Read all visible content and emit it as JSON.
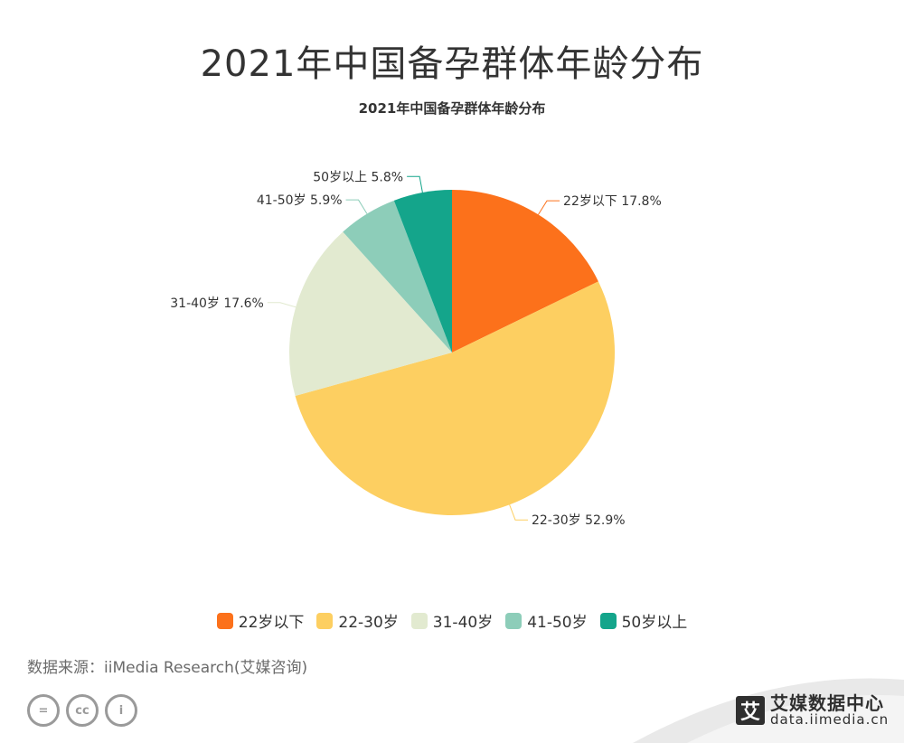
{
  "main_title": "2021年中国备孕群体年龄分布",
  "source": "数据来源：iiMedia Research(艾媒咨询)",
  "brand": {
    "name": "艾媒数据中心",
    "url": "data.iimedia.cn",
    "logo_char": "艾"
  },
  "license_icons": [
    "cc-equal-icon",
    "cc-icon",
    "cc-by-icon"
  ],
  "chart_data": {
    "type": "pie",
    "title": "2021年中国备孕群体年龄分布",
    "legend_position": "bottom",
    "slices": [
      {
        "label": "22岁以下",
        "value": 17.8,
        "display": "22岁以下 17.8%",
        "color": "#fc711b"
      },
      {
        "label": "22-30岁",
        "value": 52.9,
        "display": "22-30岁 52.9%",
        "color": "#fdcf61"
      },
      {
        "label": "31-40岁",
        "value": 17.6,
        "display": "31-40岁 17.6%",
        "color": "#e2ead0"
      },
      {
        "label": "41-50岁",
        "value": 5.9,
        "display": "41-50岁 5.9%",
        "color": "#8dcdb9"
      },
      {
        "label": "50岁以上",
        "value": 5.8,
        "display": "50岁以上 5.8%",
        "color": "#14a58b"
      }
    ]
  }
}
